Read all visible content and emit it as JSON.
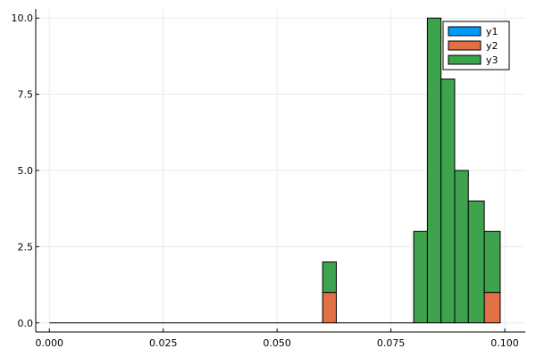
{
  "chart_data": {
    "type": "bar",
    "stacked": true,
    "x_tick_labels": [
      "0.000",
      "0.025",
      "0.050",
      "0.075",
      "0.100"
    ],
    "x_ticks": [
      0.0,
      0.025,
      0.05,
      0.075,
      0.1
    ],
    "y_tick_labels": [
      "0.0",
      "2.5",
      "5.0",
      "7.5",
      "10.0"
    ],
    "y_ticks": [
      0.0,
      2.5,
      5.0,
      7.5,
      10.0
    ],
    "xlim": [
      -0.003,
      0.1045
    ],
    "ylim": [
      -0.3,
      10.3
    ],
    "grid": true,
    "legend_position": "top-right",
    "bin_edges": [
      0.0,
      0.06,
      0.063,
      0.08,
      0.083,
      0.086,
      0.089,
      0.092,
      0.0955,
      0.099
    ],
    "series": [
      {
        "name": "y1",
        "color": "#009af9",
        "values": [
          0,
          0,
          0,
          0,
          0,
          0,
          0,
          0,
          0
        ]
      },
      {
        "name": "y2",
        "color": "#e26f46",
        "values": [
          0,
          1,
          0,
          0,
          0,
          0,
          0,
          0,
          1
        ]
      },
      {
        "name": "y3",
        "color": "#3da44d",
        "values": [
          0,
          1,
          0,
          3,
          10,
          8,
          5,
          4,
          2
        ]
      }
    ]
  }
}
